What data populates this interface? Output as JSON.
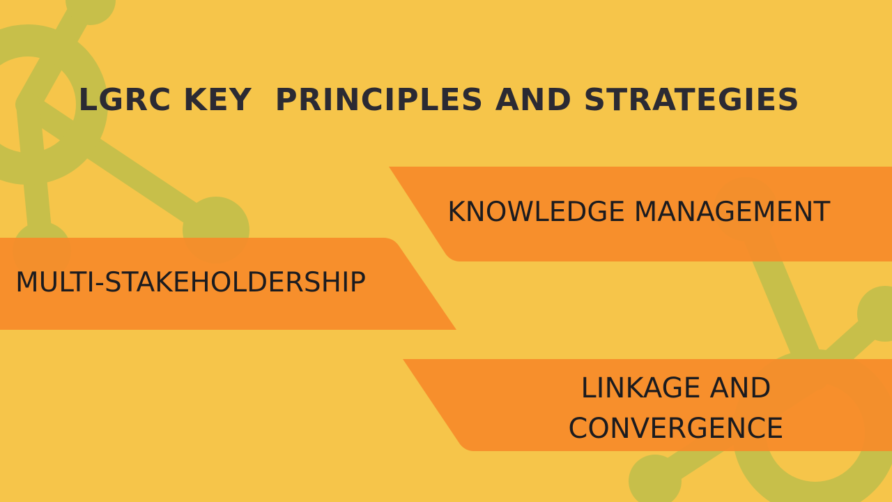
{
  "slide": {
    "title": "LGRC KEY  PRINCIPLES AND STRATEGIES",
    "banners": {
      "knowledge_management": "KNOWLEDGE MANAGEMENT",
      "multi_stakeholdership": "MULTI-STAKEHOLDERSHIP",
      "linkage_line1": "LINKAGE AND",
      "linkage_line2": "CONVERGENCE"
    }
  },
  "colors": {
    "background": "#f6c54a",
    "banner": "#f68b2a",
    "network_graphic": "#c7bf4a",
    "title_text": "#2b2a33",
    "banner_text": "#1b1b1f"
  }
}
